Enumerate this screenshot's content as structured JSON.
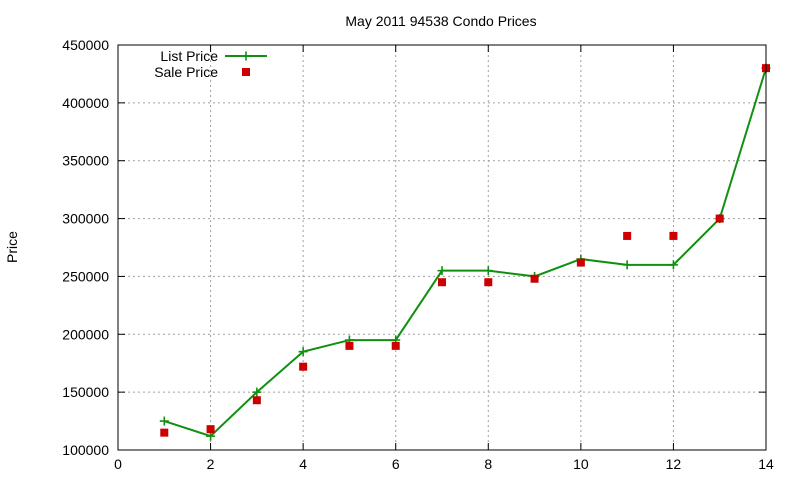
{
  "chart_data": {
    "type": "line",
    "title": "May 2011 94538 Condo Prices",
    "xlabel": "",
    "ylabel": "Price",
    "xlim": [
      0,
      14
    ],
    "ylim": [
      100000,
      450000
    ],
    "xticks": [
      0,
      2,
      4,
      6,
      8,
      10,
      12,
      14
    ],
    "yticks": [
      100000,
      150000,
      200000,
      250000,
      300000,
      350000,
      400000,
      450000
    ],
    "grid": true,
    "legend_position": "top-left",
    "series": [
      {
        "name": "List Price",
        "style": "line-with-plus-markers",
        "color": "#109010",
        "x": [
          1,
          2,
          3,
          4,
          5,
          6,
          7,
          8,
          9,
          10,
          11,
          12,
          13,
          14
        ],
        "y": [
          125000,
          112000,
          150000,
          185000,
          195000,
          195000,
          255000,
          255000,
          250000,
          265000,
          260000,
          260000,
          300000,
          430000
        ]
      },
      {
        "name": "Sale Price",
        "style": "square-markers",
        "color": "#cc0000",
        "x": [
          1,
          2,
          3,
          4,
          5,
          6,
          7,
          8,
          9,
          10,
          11,
          12,
          13,
          14
        ],
        "y": [
          115000,
          118000,
          143000,
          172000,
          190000,
          190000,
          245000,
          245000,
          248000,
          262000,
          285000,
          285000,
          300000,
          430000
        ]
      }
    ]
  }
}
